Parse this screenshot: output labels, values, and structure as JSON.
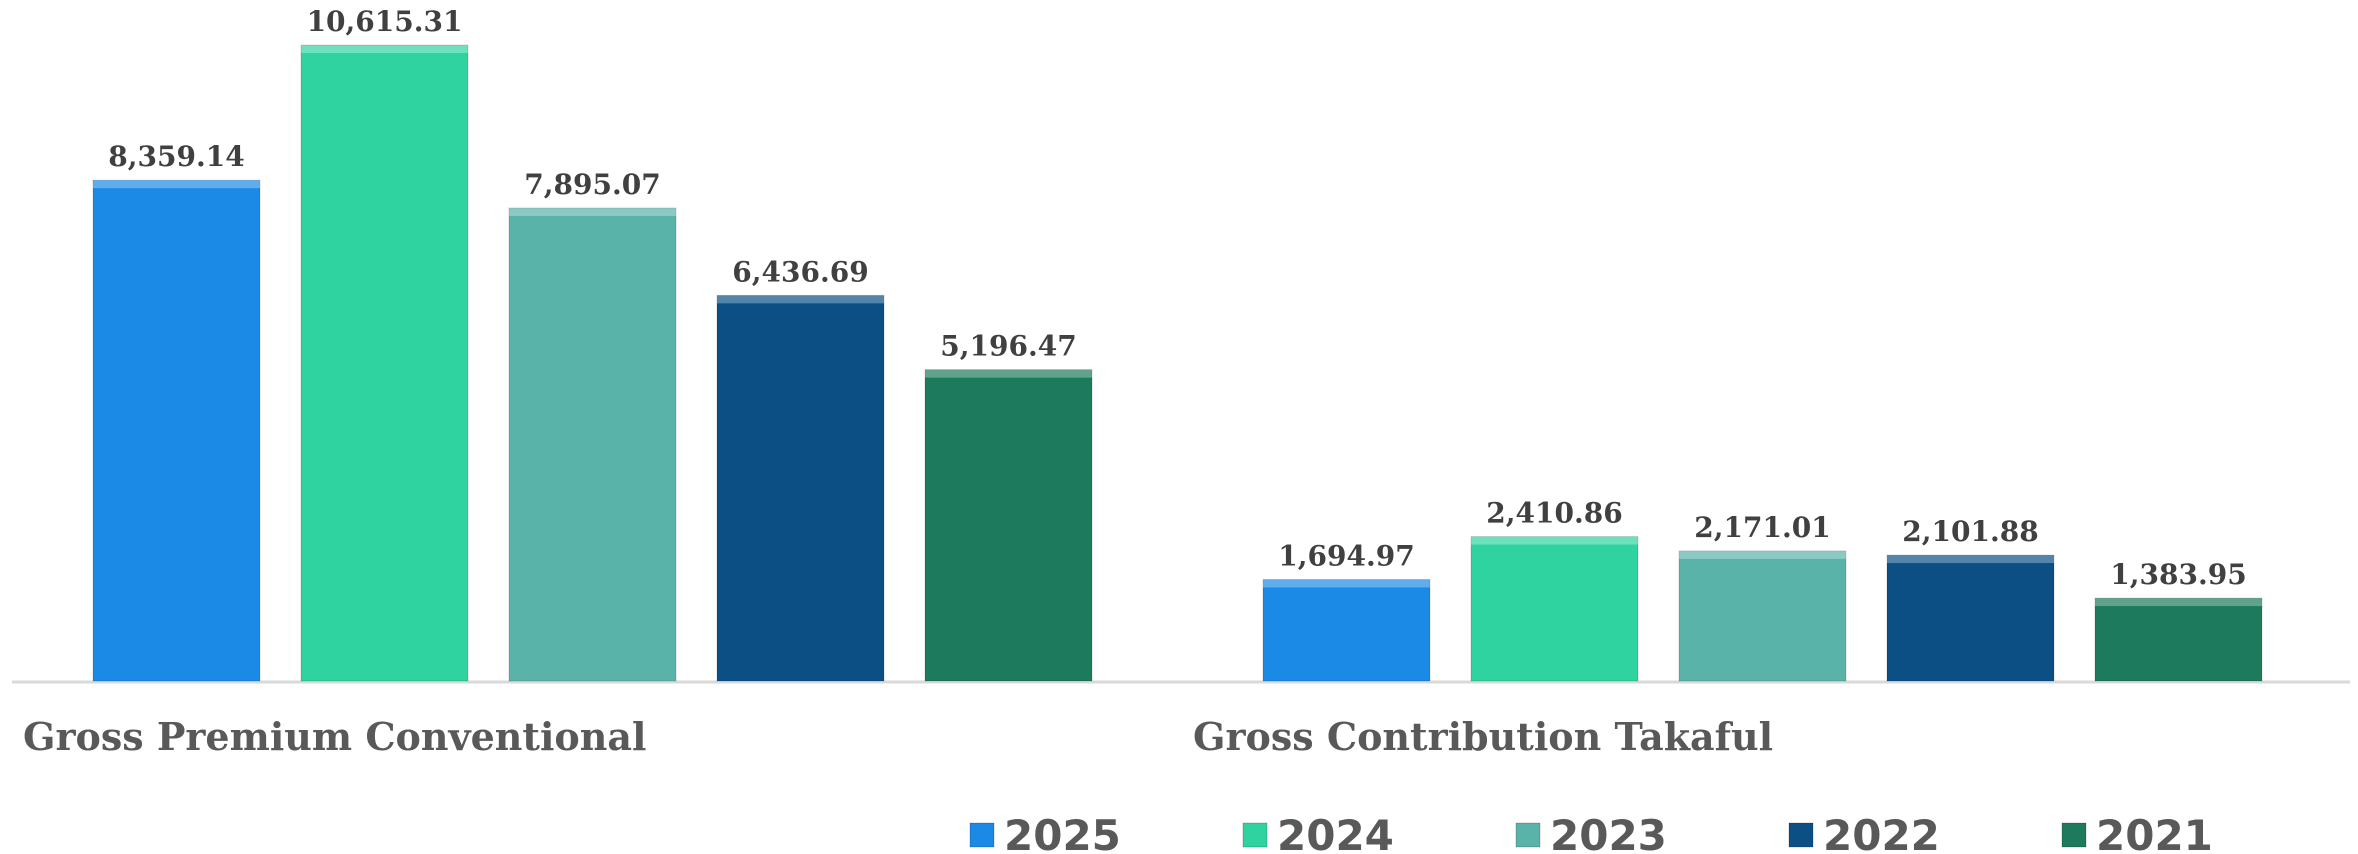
{
  "chart_data": {
    "type": "bar",
    "categories": [
      "Gross Premium Conventional",
      "Gross Contribution Takaful"
    ],
    "series": [
      {
        "name": "2025",
        "color": "#1a8ae6",
        "values": [
          8359.14,
          1694.97
        ],
        "value_labels": [
          "8,359.14",
          "1,694.97"
        ]
      },
      {
        "name": "2024",
        "color": "#2fd3a0",
        "values": [
          10615.31,
          2410.86
        ],
        "value_labels": [
          "10,615.31",
          "2,410.86"
        ]
      },
      {
        "name": "2023",
        "color": "#5ab3a8",
        "values": [
          7895.07,
          2171.01
        ],
        "value_labels": [
          "7,895.07",
          "2,171.01"
        ]
      },
      {
        "name": "2022",
        "color": "#0b4f85",
        "values": [
          6436.69,
          2101.88
        ],
        "value_labels": [
          "6,436.69",
          "2,101.88"
        ]
      },
      {
        "name": "2021",
        "color": "#1e7a5c",
        "values": [
          5196.47,
          1383.95
        ],
        "value_labels": [
          "5,196.47",
          "1,383.95"
        ]
      }
    ],
    "legend": "bottom",
    "grid": false
  }
}
